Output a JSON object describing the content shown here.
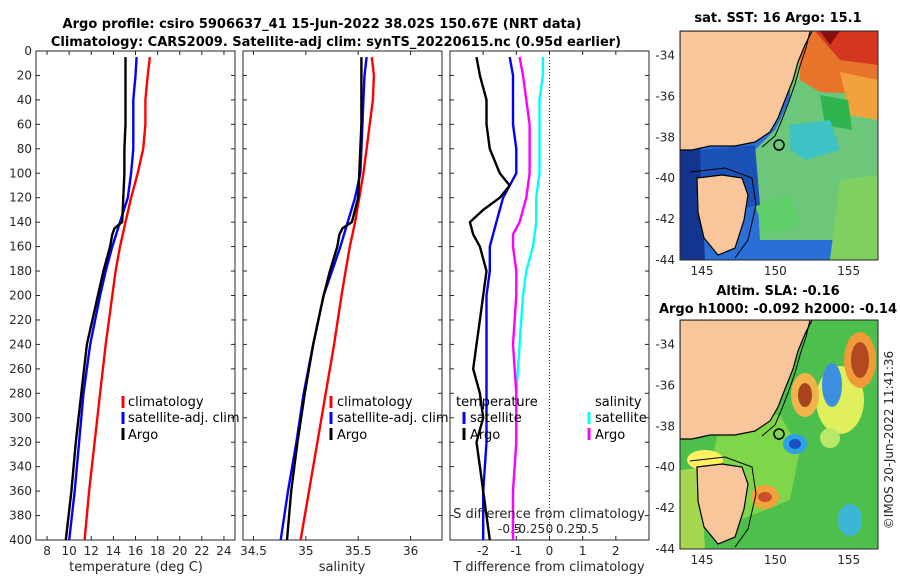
{
  "titles": {
    "main_line1": "Argo profile: csiro 5906637_41 15-Jun-2022 38.02S 150.67E (NRT data)",
    "main_line2": "Climatology: CARS2009. Satellite-adj clim: synTS_20220615.nc (0.95d earlier)",
    "sst_map": "sat. SST: 16 Argo: 15.1",
    "sla_map_line1": "Altim. SLA: -0.16",
    "sla_map_line2": "Argo h1000: -0.092 h2000: -0.14",
    "credit": "©IMOS 20-Jun-2022 11:41:36"
  },
  "colors": {
    "climatology": "#ff0000",
    "satellite": "#0000ff",
    "argo": "#000000",
    "sal_satellite": "#00ffff",
    "sal_argo": "#ff00ff",
    "land": "#f9c59a"
  },
  "chart_data": [
    {
      "type": "line",
      "title": "",
      "xlabel": "temperature (deg C)",
      "ylabel": "",
      "xlim": [
        7,
        25
      ],
      "ylim": [
        400,
        0
      ],
      "xticks": [
        "8",
        "10",
        "12",
        "14",
        "16",
        "18",
        "20",
        "22",
        "24"
      ],
      "yticks": [
        "0",
        "20",
        "40",
        "60",
        "80",
        "100",
        "120",
        "140",
        "160",
        "180",
        "200",
        "220",
        "240",
        "260",
        "280",
        "300",
        "320",
        "340",
        "360",
        "380",
        "400"
      ],
      "legend": [
        "climatology",
        "satellite-adj. clim",
        "Argo"
      ],
      "series": [
        {
          "name": "climatology",
          "color": "#ff0000",
          "depth": [
            5,
            20,
            40,
            60,
            70,
            80,
            100,
            120,
            140,
            160,
            180,
            200,
            240,
            280,
            320,
            360,
            400
          ],
          "values": [
            17.3,
            17.1,
            16.9,
            16.9,
            16.8,
            16.7,
            16.2,
            15.6,
            15.1,
            14.6,
            14.2,
            13.9,
            13.3,
            12.8,
            12.3,
            11.8,
            11.4
          ]
        },
        {
          "name": "satellite-adj. clim",
          "color": "#0000ff",
          "depth": [
            5,
            20,
            40,
            60,
            80,
            100,
            120,
            140,
            160,
            180,
            200,
            240,
            280,
            320,
            360,
            400
          ],
          "values": [
            16.1,
            16.0,
            15.8,
            15.8,
            15.8,
            15.6,
            15.3,
            14.6,
            13.9,
            13.3,
            12.8,
            11.9,
            11.3,
            10.9,
            10.5,
            10.0
          ]
        },
        {
          "name": "Argo",
          "color": "#000000",
          "depth": [
            5,
            20,
            40,
            60,
            80,
            100,
            120,
            140,
            145,
            150,
            160,
            180,
            200,
            240,
            280,
            320,
            360,
            400
          ],
          "values": [
            15.1,
            15.1,
            15.1,
            15.1,
            15.0,
            15.0,
            14.9,
            14.8,
            14.1,
            13.9,
            13.7,
            13.1,
            12.6,
            11.6,
            11.1,
            10.6,
            10.2,
            9.7
          ]
        }
      ]
    },
    {
      "type": "line",
      "title": "",
      "xlabel": "salinity",
      "ylabel": "",
      "xlim": [
        34.4,
        36.3
      ],
      "ylim": [
        400,
        0
      ],
      "xticks": [
        "34.5",
        "35",
        "35.5",
        "36"
      ],
      "legend": [
        "climatology",
        "satellite-adj. clim",
        "Argo"
      ],
      "series": [
        {
          "name": "climatology",
          "color": "#ff0000",
          "depth": [
            5,
            20,
            40,
            60,
            80,
            100,
            120,
            140,
            160,
            180,
            200,
            240,
            280,
            320,
            360,
            400
          ],
          "values": [
            35.63,
            35.65,
            35.64,
            35.61,
            35.58,
            35.55,
            35.51,
            35.47,
            35.42,
            35.38,
            35.34,
            35.27,
            35.19,
            35.11,
            35.03,
            34.95
          ]
        },
        {
          "name": "satellite-adj. clim",
          "color": "#0000ff",
          "depth": [
            5,
            20,
            40,
            60,
            80,
            100,
            120,
            140,
            160,
            180,
            200,
            240,
            280,
            320,
            360,
            400
          ],
          "values": [
            35.58,
            35.56,
            35.55,
            35.54,
            35.53,
            35.52,
            35.47,
            35.4,
            35.33,
            35.25,
            35.17,
            35.07,
            34.98,
            34.91,
            34.83,
            34.76
          ]
        },
        {
          "name": "Argo",
          "color": "#000000",
          "depth": [
            5,
            20,
            40,
            60,
            80,
            100,
            120,
            140,
            145,
            150,
            160,
            180,
            200,
            240,
            280,
            320,
            360,
            400
          ],
          "values": [
            35.53,
            35.53,
            35.53,
            35.53,
            35.52,
            35.51,
            35.5,
            35.44,
            35.35,
            35.32,
            35.3,
            35.23,
            35.17,
            35.07,
            34.99,
            34.92,
            34.86,
            34.82
          ]
        }
      ]
    },
    {
      "type": "line",
      "title": "",
      "xlabel": "T difference from climatology",
      "top_xlabel": "S difference from climatology",
      "ylabel": "",
      "xlim": [
        -3,
        3
      ],
      "ylim": [
        400,
        0
      ],
      "xticks": [
        "-2",
        "-1",
        "0",
        "1",
        "2"
      ],
      "top_xticks": [
        "-0.5",
        "-0.25",
        "0",
        "0.25",
        "0.5"
      ],
      "legend": {
        "temperature_header": "temperature",
        "salinity_header": "salinity",
        "temperature_items": [
          "satellite",
          "Argo"
        ],
        "salinity_items": [
          "satellite",
          "Argo"
        ]
      },
      "series": [
        {
          "name": "temperature satellite",
          "color": "#0000ff",
          "depth": [
            5,
            20,
            40,
            60,
            80,
            100,
            120,
            140,
            160,
            180,
            200,
            240,
            280,
            320,
            360,
            400
          ],
          "values": [
            -1.2,
            -1.1,
            -1.1,
            -1.1,
            -1.0,
            -1.0,
            -1.4,
            -1.6,
            -1.8,
            -1.8,
            -1.9,
            -1.9,
            -1.9,
            -1.9,
            -2.0,
            -2.0
          ]
        },
        {
          "name": "temperature Argo",
          "color": "#000000",
          "depth": [
            5,
            20,
            40,
            60,
            80,
            100,
            110,
            120,
            130,
            140,
            150,
            160,
            170,
            180,
            200,
            220,
            240,
            260,
            280,
            300,
            320,
            340,
            360,
            380,
            400
          ],
          "values": [
            -2.2,
            -2.1,
            -1.9,
            -1.9,
            -1.8,
            -1.5,
            -1.2,
            -1.5,
            -2.0,
            -2.4,
            -2.3,
            -2.1,
            -2.0,
            -1.9,
            -2.0,
            -2.1,
            -2.2,
            -2.3,
            -2.1,
            -2.0,
            -2.2,
            -2.1,
            -2.0,
            -1.9,
            -1.8
          ]
        },
        {
          "name": "salinity satellite",
          "color": "#00ffff",
          "depth": [
            5,
            20,
            40,
            60,
            80,
            100,
            120,
            140,
            160,
            180,
            200,
            240,
            280,
            320,
            360,
            400
          ],
          "values": [
            -0.2,
            -0.2,
            -0.3,
            -0.3,
            -0.3,
            -0.3,
            -0.4,
            -0.4,
            -0.5,
            -0.7,
            -0.8,
            -0.9,
            -1.0,
            -1.0,
            -1.1,
            -1.1
          ]
        },
        {
          "name": "salinity Argo",
          "color": "#ff00ff",
          "depth": [
            5,
            20,
            40,
            60,
            80,
            100,
            120,
            140,
            150,
            160,
            180,
            200,
            240,
            280,
            320,
            360,
            400
          ],
          "values": [
            -0.9,
            -0.8,
            -0.7,
            -0.6,
            -0.6,
            -0.6,
            -0.7,
            -0.9,
            -1.1,
            -1.1,
            -1.0,
            -1.0,
            -1.1,
            -1.0,
            -1.0,
            -1.1,
            -1.1
          ]
        }
      ]
    },
    {
      "type": "heatmap",
      "title": "sat. SST: 16 Argo: 15.1",
      "xticks": [
        "145",
        "150",
        "155"
      ],
      "yticks": [
        "-34",
        "-36",
        "-38",
        "-40",
        "-42",
        "-44"
      ],
      "xlim": [
        143.5,
        157
      ],
      "ylim": [
        -44,
        -32.8
      ],
      "argo_position": {
        "lon": 150.67,
        "lat": -38.02
      }
    },
    {
      "type": "heatmap",
      "title": "Altim. SLA: -0.16",
      "xticks": [
        "145",
        "150",
        "155"
      ],
      "yticks": [
        "-34",
        "-36",
        "-38",
        "-40",
        "-42",
        "-44"
      ],
      "xlim": [
        143.5,
        157
      ],
      "ylim": [
        -44,
        -32.8
      ],
      "argo_position": {
        "lon": 150.67,
        "lat": -38.02
      }
    }
  ]
}
